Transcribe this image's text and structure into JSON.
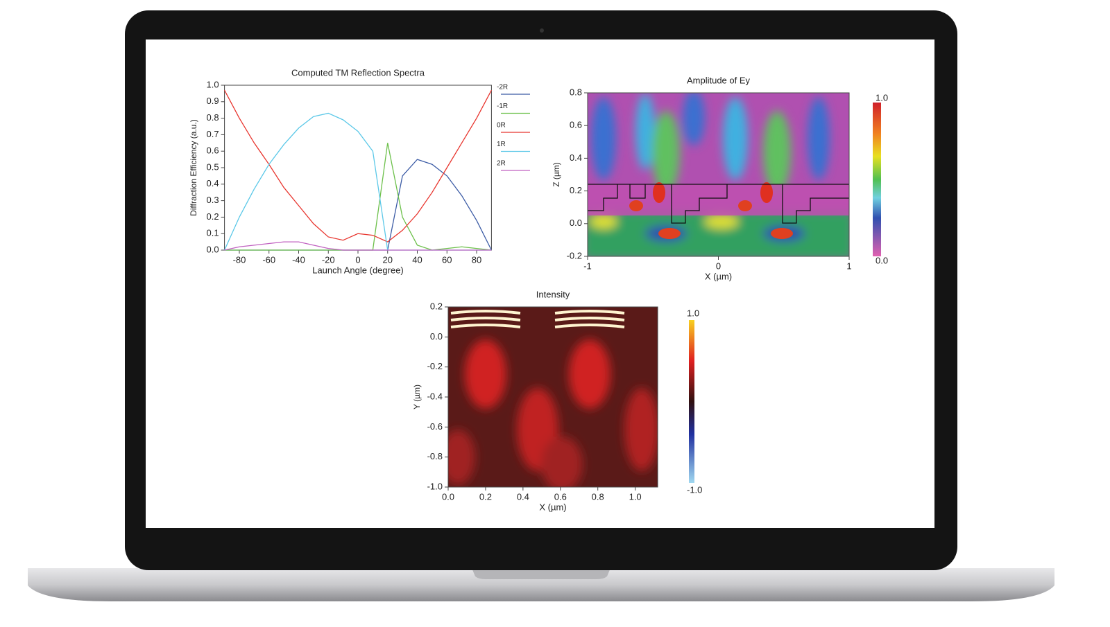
{
  "chart_data": [
    {
      "type": "line",
      "title": "Computed TM Reflection Spectra",
      "x_label": "Launch Angle (degree)",
      "y_label": "Diffraction Efficiency (a.u.)",
      "x": [
        -90,
        -80,
        -70,
        -60,
        -50,
        -40,
        -30,
        -20,
        -10,
        0,
        10,
        20,
        30,
        40,
        50,
        60,
        70,
        80,
        90
      ],
      "series": [
        {
          "name": "-2R",
          "color": "#3b5ba5",
          "values": [
            0,
            0,
            0,
            0,
            0,
            0,
            0,
            0,
            0,
            0,
            0,
            0,
            0.45,
            0.55,
            0.52,
            0.45,
            0.33,
            0.18,
            0
          ]
        },
        {
          "name": "-1R",
          "color": "#6cc04a",
          "values": [
            0,
            0,
            0,
            0,
            0,
            0,
            0,
            0,
            0,
            0,
            0,
            0.65,
            0.2,
            0.03,
            0,
            0.01,
            0.02,
            0.01,
            0
          ]
        },
        {
          "name": "0R",
          "color": "#e8352e",
          "values": [
            0.97,
            0.8,
            0.65,
            0.52,
            0.38,
            0.27,
            0.16,
            0.08,
            0.06,
            0.1,
            0.09,
            0.05,
            0.12,
            0.22,
            0.35,
            0.5,
            0.65,
            0.8,
            0.97
          ]
        },
        {
          "name": "1R",
          "color": "#5bc8e8",
          "values": [
            0,
            0.2,
            0.37,
            0.52,
            0.64,
            0.74,
            0.81,
            0.83,
            0.79,
            0.72,
            0.6,
            0,
            0,
            0,
            0,
            0,
            0,
            0,
            0
          ]
        },
        {
          "name": "2R",
          "color": "#c060c0",
          "values": [
            0,
            0.02,
            0.03,
            0.04,
            0.05,
            0.05,
            0.03,
            0.01,
            0,
            0,
            0,
            0,
            0,
            0,
            0,
            0,
            0,
            0,
            0
          ]
        }
      ],
      "xlim": [
        -90,
        90
      ],
      "xticks": [
        -80,
        -60,
        -40,
        -20,
        0,
        20,
        40,
        60,
        80
      ],
      "ylim": [
        0,
        1
      ],
      "yticks": [
        {
          "value": 0,
          "label": "0.0"
        },
        0.1,
        0.2,
        0.3,
        0.4,
        0.5,
        0.6,
        0.7,
        0.8,
        0.9,
        {
          "value": 1,
          "label": "1.0"
        }
      ]
    },
    {
      "type": "heatmap",
      "title": "Amplitude of Ey",
      "x_label": "X (µm)",
      "y_label": "Z (µm)",
      "xlim": [
        -1,
        1
      ],
      "xticks": [
        -1,
        0,
        1
      ],
      "ylim": [
        -0.2,
        0.8
      ],
      "yticks": [
        -0.2,
        {
          "value": 0,
          "label": "0.0"
        },
        0.2,
        0.4,
        0.6,
        0.8
      ],
      "colorbar_ticks": [
        {
          "value": 1,
          "label": "1.0"
        },
        {
          "value": 0,
          "label": "0.0"
        }
      ]
    },
    {
      "type": "heatmap",
      "title": "Intensity",
      "x_label": "X (µm)",
      "y_label": "Y (µm)",
      "xlim": [
        0,
        1.12
      ],
      "xticks": [
        {
          "value": 0,
          "label": "0.0"
        },
        0.2,
        0.4,
        0.6,
        0.8,
        {
          "value": 1,
          "label": "1.0"
        }
      ],
      "ylim": [
        -1,
        0.2
      ],
      "yticks": [
        {
          "value": -1,
          "label": "-1.0"
        },
        -0.8,
        -0.6,
        -0.4,
        -0.2,
        {
          "value": 0,
          "label": "0.0"
        },
        0.2
      ],
      "colorbar_ticks": [
        {
          "value": 1,
          "label": "1.0"
        },
        {
          "value": -1,
          "label": "-1.0"
        }
      ]
    }
  ]
}
